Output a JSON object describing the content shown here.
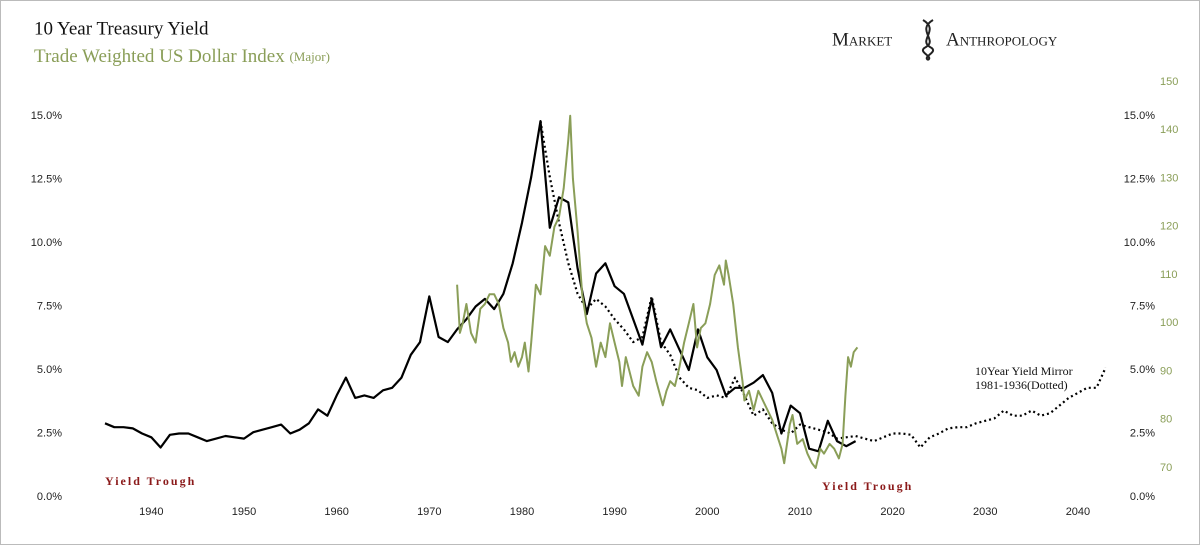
{
  "chart_data": {
    "type": "line",
    "title": "10 Year Treasury Yield",
    "subtitle": "Trade Weighted US Dollar Index",
    "subtitle_note": "(Major)",
    "logo": [
      "Market",
      "Anthropology"
    ],
    "annotations": [
      "Yield Trough",
      "Yield Trough",
      "10Year Yield Mirror",
      "1981-1936(Dotted)"
    ],
    "xlim": [
      1935,
      2044
    ],
    "xticks": [
      1940,
      1950,
      1960,
      1970,
      1980,
      1990,
      2000,
      2010,
      2020,
      2030,
      2040
    ],
    "ylim": [
      0,
      16.34
    ],
    "yticks": [
      {
        "value": 0,
        "label": "0.0%"
      },
      {
        "value": 2.5,
        "label": "2.5%"
      },
      {
        "value": 5,
        "label": "5.0%"
      },
      {
        "value": 7.5,
        "label": "7.5%"
      },
      {
        "value": 10,
        "label": "10.0%"
      },
      {
        "value": 12.5,
        "label": "12.5%"
      },
      {
        "value": 15,
        "label": "15.0%"
      }
    ],
    "y2lim": [
      64,
      150
    ],
    "y2ticks": [
      70,
      80,
      90,
      100,
      110,
      120,
      130,
      140,
      150
    ],
    "series": [
      {
        "name": "10 Year Treasury Yield",
        "color": "#000000",
        "style": "solid",
        "x": [
          1935,
          1936,
          1937,
          1938,
          1939,
          1940,
          1941,
          1942,
          1943,
          1944,
          1945,
          1946,
          1947,
          1948,
          1949,
          1950,
          1951,
          1952,
          1953,
          1954,
          1955,
          1956,
          1957,
          1958,
          1959,
          1960,
          1961,
          1962,
          1963,
          1964,
          1965,
          1966,
          1967,
          1968,
          1969,
          1970,
          1971,
          1972,
          1973,
          1974,
          1975,
          1976,
          1977,
          1978,
          1979,
          1980,
          1981,
          1982,
          1983,
          1984,
          1985,
          1986,
          1987,
          1988,
          1989,
          1990,
          1991,
          1992,
          1993,
          1994,
          1995,
          1996,
          1997,
          1998,
          1999,
          2000,
          2001,
          2002,
          2003,
          2004,
          2005,
          2006,
          2007,
          2008,
          2009,
          2010,
          2011,
          2012,
          2013,
          2014,
          2015,
          2016
        ],
        "values": [
          2.9,
          2.75,
          2.75,
          2.7,
          2.5,
          2.35,
          1.95,
          2.45,
          2.5,
          2.5,
          2.35,
          2.2,
          2.3,
          2.4,
          2.35,
          2.3,
          2.55,
          2.65,
          2.75,
          2.85,
          2.5,
          2.65,
          2.9,
          3.45,
          3.2,
          4.0,
          4.7,
          3.9,
          4.0,
          3.9,
          4.2,
          4.3,
          4.7,
          5.6,
          6.1,
          7.9,
          6.3,
          6.1,
          6.6,
          7.0,
          7.5,
          7.8,
          7.4,
          8.0,
          9.2,
          10.8,
          12.6,
          14.8,
          10.6,
          11.8,
          11.6,
          9.0,
          7.2,
          8.8,
          9.2,
          8.3,
          8.0,
          7.0,
          6.0,
          7.8,
          5.9,
          6.6,
          5.8,
          5.0,
          6.6,
          5.5,
          5.0,
          4.0,
          4.3,
          4.3,
          4.5,
          4.8,
          4.1,
          2.5,
          3.6,
          3.3,
          1.9,
          1.8,
          3.0,
          2.2,
          2.0,
          2.2
        ]
      },
      {
        "name": "10Year Yield Mirror",
        "color": "#000000",
        "style": "dotted",
        "x": [
          1982,
          1983,
          1984,
          1985,
          1986,
          1987,
          1988,
          1989,
          1990,
          1991,
          1992,
          1993,
          1994,
          1995,
          1996,
          1997,
          1998,
          1999,
          2000,
          2001,
          2002,
          2003,
          2004,
          2005,
          2006,
          2007,
          2008,
          2009,
          2010,
          2011,
          2012,
          2013,
          2014,
          2015,
          2016,
          2017,
          2018,
          2019,
          2020,
          2021,
          2022,
          2023,
          2024,
          2025,
          2026,
          2027,
          2028,
          2029,
          2030,
          2031,
          2032,
          2033,
          2034,
          2035,
          2036,
          2037,
          2038,
          2039,
          2040,
          2041,
          2042,
          2043
        ],
        "values": [
          14.8,
          12.6,
          10.8,
          9.2,
          8.0,
          7.4,
          7.8,
          7.5,
          7.0,
          6.6,
          6.1,
          6.3,
          7.9,
          6.1,
          5.6,
          4.7,
          4.3,
          4.2,
          3.9,
          4.0,
          3.9,
          4.7,
          4.0,
          3.2,
          3.45,
          2.9,
          2.65,
          2.5,
          2.85,
          2.75,
          2.65,
          2.55,
          2.3,
          2.35,
          2.4,
          2.3,
          2.2,
          2.35,
          2.5,
          2.5,
          2.45,
          1.95,
          2.35,
          2.5,
          2.7,
          2.75,
          2.75,
          2.9,
          3.0,
          3.1,
          3.4,
          3.2,
          3.2,
          3.4,
          3.2,
          3.3,
          3.6,
          3.9,
          4.1,
          4.3,
          4.3,
          5.1
        ]
      },
      {
        "name": "Trade Weighted US Dollar Index",
        "color": "#8a9e58",
        "style": "solid",
        "axis": "y2",
        "x": [
          1973.0,
          1973.3,
          1973.6,
          1974.0,
          1974.5,
          1975.0,
          1975.5,
          1976.0,
          1976.5,
          1977.0,
          1977.5,
          1978.0,
          1978.5,
          1978.8,
          1979.2,
          1979.6,
          1980.0,
          1980.3,
          1980.7,
          1981.0,
          1981.5,
          1982.0,
          1982.5,
          1983.0,
          1983.5,
          1984.0,
          1984.5,
          1985.0,
          1985.2,
          1985.5,
          1986.0,
          1986.5,
          1987.0,
          1987.5,
          1988.0,
          1988.5,
          1989.0,
          1989.5,
          1990.0,
          1990.5,
          1990.8,
          1991.2,
          1991.6,
          1992.0,
          1992.6,
          1993.0,
          1993.5,
          1994.0,
          1994.5,
          1995.2,
          1995.6,
          1996.0,
          1996.5,
          1997.0,
          1997.5,
          1998.0,
          1998.5,
          1998.9,
          1999.3,
          1999.8,
          2000.3,
          2000.8,
          2001.3,
          2001.8,
          2002.0,
          2002.3,
          2002.8,
          2003.3,
          2003.8,
          2004.0,
          2004.5,
          2005.0,
          2005.5,
          2006.0,
          2006.5,
          2007.0,
          2007.5,
          2008.0,
          2008.3,
          2008.9,
          2009.2,
          2009.7,
          2010.3,
          2010.8,
          2011.3,
          2011.7,
          2012.2,
          2012.6,
          2013.2,
          2013.7,
          2014.2,
          2014.6,
          2014.9,
          2015.2,
          2015.5,
          2015.8,
          2016.2
        ],
        "values": [
          108,
          98,
          100,
          104,
          98,
          96,
          103,
          104,
          106,
          106,
          104,
          99,
          96,
          92,
          94,
          91,
          93,
          96,
          90,
          96,
          108,
          106,
          116,
          114,
          120,
          122,
          128,
          138,
          143,
          130,
          119,
          106,
          100,
          97,
          91,
          96,
          93,
          100,
          96,
          92,
          87,
          93,
          90,
          87,
          85,
          91,
          94,
          92,
          88,
          83,
          86,
          88,
          87,
          91,
          96,
          100,
          104,
          95,
          99,
          100,
          104,
          110,
          112,
          108,
          113,
          110,
          104,
          95,
          88,
          84,
          86,
          82,
          86,
          84,
          82,
          80,
          77,
          74,
          71,
          79,
          81,
          75,
          76,
          73,
          71,
          70,
          74,
          73,
          75,
          74,
          72,
          75,
          85,
          93,
          91,
          94,
          95
        ]
      }
    ]
  }
}
